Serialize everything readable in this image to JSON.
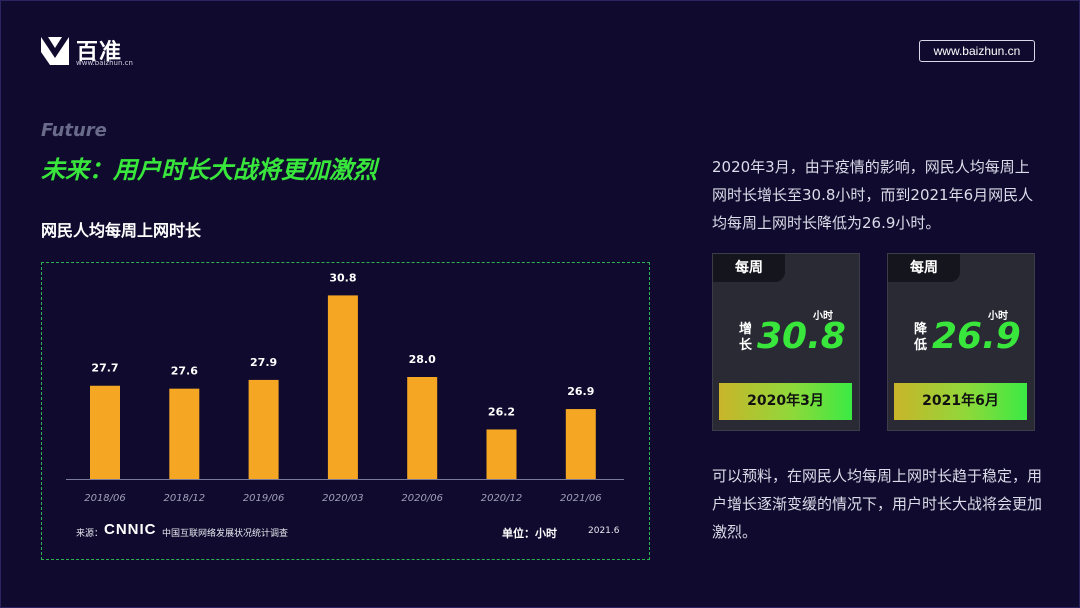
{
  "brand": {
    "name": "百准",
    "sub": "www.baizhun.cn"
  },
  "url": "www.baizhun.cn",
  "tag_en": "Future",
  "headline": "未来：用户时长大战将更加激烈",
  "chart_heading": "网民人均每周上网时长",
  "chart_data": {
    "type": "bar",
    "categories": [
      "2018/06",
      "2018/12",
      "2019/06",
      "2020/03",
      "2020/06",
      "2020/12",
      "2021/06"
    ],
    "values": [
      27.7,
      27.6,
      27.9,
      30.8,
      28.0,
      26.2,
      26.9
    ],
    "value_labels": [
      "27.7",
      "27.6",
      "27.9",
      "30.8",
      "28.0",
      "26.2",
      "26.9"
    ],
    "ylim": [
      24.5,
      31.5
    ],
    "bar_color": "#f5a623"
  },
  "source_label": "来源：",
  "source_org": "CNNIC",
  "source_survey": "中国互联网络发展状况统计调查",
  "unit": "单位：小时",
  "date": "2021.6",
  "paragraph1": "2020年3月，由于疫情的影响，网民人均每周上网时长增长至30.8小时，而到2021年6月网民人均每周上网时长降低为26.9小时。",
  "paragraph2": "可以预料，在网民人均每周上网时长趋于稳定，用户增长逐渐变缓的情况下，用户时长大战将会更加激烈。",
  "cards": [
    {
      "tab": "每周",
      "unit": "小时",
      "verb": "增长",
      "value": "30.8",
      "date": "2020年3月"
    },
    {
      "tab": "每周",
      "unit": "小时",
      "verb": "降低",
      "value": "26.9",
      "date": "2021年6月"
    }
  ],
  "colors": {
    "accent_green": "#39e63c",
    "background": "#0f0a2e",
    "bar": "#f5a623"
  }
}
